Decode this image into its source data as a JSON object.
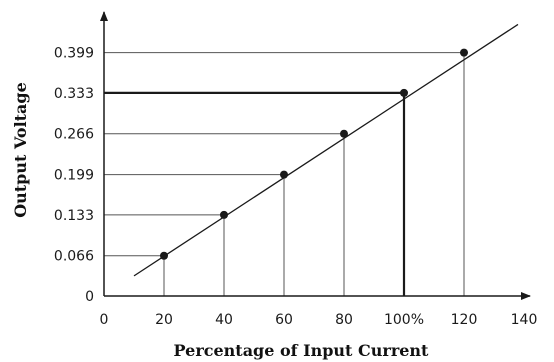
{
  "chart_data": {
    "type": "line",
    "title": "",
    "xlabel": "Percentage of Input Current",
    "ylabel": "Output Voltage",
    "xlim": [
      0,
      140
    ],
    "ylim": [
      0,
      0.42
    ],
    "x_ticks": [
      0,
      20,
      40,
      60,
      80,
      100,
      120,
      140
    ],
    "x_tick_labels": [
      "0",
      "20",
      "40",
      "60",
      "80",
      "100%",
      "120",
      "140"
    ],
    "y_ticks": [
      0,
      0.066,
      0.133,
      0.199,
      0.266,
      0.333,
      0.399
    ],
    "y_tick_labels": [
      "0",
      "0.066",
      "0.133",
      "0.199",
      "0.266",
      "0.333",
      "0.399"
    ],
    "line": {
      "x": [
        10,
        138
      ],
      "y": [
        0.033,
        0.4452
      ]
    },
    "series": [
      {
        "x": [
          20,
          40,
          60,
          80,
          100,
          120
        ],
        "y": [
          0.066,
          0.133,
          0.199,
          0.266,
          0.333,
          0.399
        ]
      }
    ],
    "highlight_x": 100,
    "grid": false,
    "colors": {
      "ink": "#1a1a1a",
      "guide": "#555555"
    }
  }
}
